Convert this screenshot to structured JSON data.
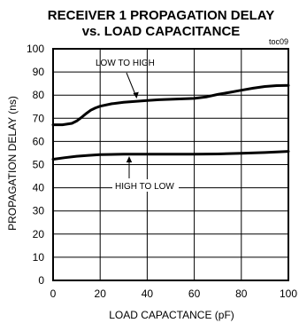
{
  "chart_data": {
    "type": "line",
    "title": "RECEIVER 1 PROPAGATION DELAY",
    "subtitle": "vs. LOAD CAPACITANCE",
    "figure_code": "toc09",
    "xlabel": "LOAD CAPACTANCE (pF)",
    "ylabel": "PROPAGATION DELAY (ns)",
    "xlim": [
      0,
      100
    ],
    "ylim": [
      0,
      100
    ],
    "xticks": [
      0,
      20,
      40,
      60,
      80,
      100
    ],
    "yticks": [
      0,
      10,
      20,
      30,
      40,
      50,
      60,
      70,
      80,
      90,
      100
    ],
    "grid": true,
    "series": [
      {
        "name": "LOW TO HIGH",
        "x": [
          0,
          4,
          8,
          10,
          12,
          14,
          16,
          18,
          20,
          25,
          30,
          35,
          40,
          45,
          50,
          55,
          60,
          65,
          70,
          75,
          80,
          85,
          90,
          95,
          100
        ],
        "y": [
          67.2,
          67.2,
          67.8,
          68.8,
          70.3,
          72.0,
          73.5,
          74.5,
          75.2,
          76.3,
          76.9,
          77.3,
          77.7,
          78.0,
          78.2,
          78.4,
          78.6,
          79.2,
          80.3,
          81.2,
          82.1,
          83.0,
          83.7,
          84.1,
          84.2
        ]
      },
      {
        "name": "HIGH TO LOW",
        "x": [
          0,
          5,
          10,
          15,
          20,
          30,
          40,
          50,
          60,
          70,
          80,
          90,
          100
        ],
        "y": [
          52.3,
          53.0,
          53.6,
          54.0,
          54.3,
          54.5,
          54.5,
          54.5,
          54.5,
          54.6,
          54.9,
          55.2,
          55.7
        ]
      }
    ],
    "annotations": [
      {
        "text": "LOW TO HIGH",
        "series": 0
      },
      {
        "text": "HIGH TO LOW",
        "series": 1
      }
    ]
  }
}
